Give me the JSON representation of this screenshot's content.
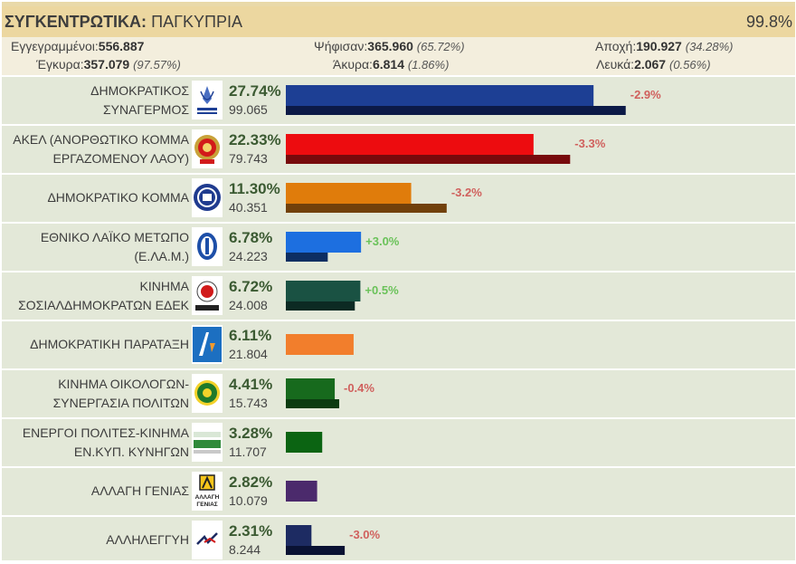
{
  "header": {
    "title_bold": "ΣΥΓΚΕΝΤΡΩΤΙΚΑ:",
    "title_rest": "ΠΑΓΚΥΠΡΙΑ",
    "counted": "99.8%"
  },
  "stats": {
    "registered_label": "Εγγεγραμμένοι:",
    "registered_value": "556.887",
    "voted_label": "Ψήφισαν:",
    "voted_value": "365.960",
    "voted_pct": "(65.72%)",
    "abstention_label": "Αποχή:",
    "abstention_value": "190.927",
    "abstention_pct": "(34.28%)",
    "valid_label": "Έγκυρα:",
    "valid_value": "357.079",
    "valid_pct": "(97.57%)",
    "invalid_label": "Άκυρα:",
    "invalid_value": "6.814",
    "invalid_pct": "(1.86%)",
    "blank_label": "Λευκά:",
    "blank_value": "2.067",
    "blank_pct": "(0.56%)"
  },
  "colors": {
    "gain": "#6ac259",
    "loss": "#d0605d"
  },
  "chart_data": {
    "type": "bar",
    "orientation": "horizontal",
    "xlim": [
      0,
      38
    ],
    "series": [
      {
        "values": [
          27.74,
          22.33,
          11.3,
          6.78,
          6.72,
          6.11,
          4.41,
          3.28,
          2.82,
          2.31
        ]
      }
    ],
    "previous_values": [
      30.64,
      25.63,
      14.5,
      3.78,
      6.22,
      null,
      4.81,
      null,
      null,
      5.31
    ],
    "parties": [
      {
        "name": "ΔΗΜΟΚΡΑΤΙΚΟΣ ΣΥΝΑΓΕΡΜΟΣ",
        "line1": "ΔΗΜΟΚΡΑΤΙΚΟΣ",
        "line2": "ΣΥΝΑΓΕΡΜΟΣ",
        "pct": "27.74%",
        "votes": "99.065",
        "value": 27.74,
        "prev": 30.64,
        "change": "-2.9%",
        "change_dir": "loss",
        "color": "#1d3f94",
        "prev_color": "#0c1a47",
        "logo": "dhsy-logo-icon"
      },
      {
        "name": "ΑΚΕΛ (ΑΝΟΡΘΩΤΙΚΟ ΚΟΜΜΑ ΕΡΓΑΖΟΜΕΝΟΥ ΛΑΟΥ)",
        "line1": "ΑΚΕΛ (ΑΝΟΡΘΩΤΙΚΟ ΚΟΜΜΑ",
        "line2": "ΕΡΓΑΖΟΜΕΝΟΥ ΛΑΟΥ)",
        "pct": "22.33%",
        "votes": "79.743",
        "value": 22.33,
        "prev": 25.63,
        "change": "-3.3%",
        "change_dir": "loss",
        "color": "#ed0c0f",
        "prev_color": "#770a0c",
        "logo": "akel-logo-icon"
      },
      {
        "name": "ΔΗΜΟΚΡΑΤΙΚΟ ΚΟΜΜΑ",
        "line1": "",
        "line2": "ΔΗΜΟΚΡΑΤΙΚΟ ΚΟΜΜΑ",
        "pct": "11.30%",
        "votes": "40.351",
        "value": 11.3,
        "prev": 14.5,
        "change": "-3.2%",
        "change_dir": "loss",
        "color": "#e07c0b",
        "prev_color": "#71400b",
        "logo": "diko-logo-icon"
      },
      {
        "name": "ΕΘΝΙΚΟ ΛΑΪΚΟ ΜΕΤΩΠΟ (Ε.ΛΑ.Μ.)",
        "line1": "ΕΘΝΙΚΟ ΛΑΪΚΟ ΜΕΤΩΠΟ",
        "line2": "(Ε.ΛΑ.Μ.)",
        "pct": "6.78%",
        "votes": "24.223",
        "value": 6.78,
        "prev": 3.78,
        "change": "+3.0%",
        "change_dir": "gain",
        "color": "#1d6fe0",
        "prev_color": "#0d2e62",
        "logo": "elam-logo-icon"
      },
      {
        "name": "ΚΙΝΗΜΑ ΣΟΣΙΑΛΔΗΜΟΚΡΑΤΩΝ ΕΔΕΚ",
        "line1": "ΚΙΝΗΜΑ",
        "line2": "ΣΟΣΙΑΛΔΗΜΟΚΡΑΤΩΝ ΕΔΕΚ",
        "pct": "6.72%",
        "votes": "24.008",
        "value": 6.72,
        "prev": 6.22,
        "change": "+0.5%",
        "change_dir": "gain",
        "color": "#1a5243",
        "prev_color": "#0c2a23",
        "logo": "edek-logo-icon"
      },
      {
        "name": "ΔΗΜΟΚΡΑΤΙΚΗ ΠΑΡΑΤΑΞΗ",
        "line1": "",
        "line2": "ΔΗΜΟΚΡΑΤΙΚΗ ΠΑΡΑΤΑΞΗ",
        "pct": "6.11%",
        "votes": "21.804",
        "value": 6.11,
        "prev": null,
        "change": "",
        "change_dir": "",
        "color": "#f27e2c",
        "prev_color": "",
        "logo": "dipa-logo-icon"
      },
      {
        "name": "ΚΙΝΗΜΑ ΟΙΚΟΛΟΓΩΝ-ΣΥΝΕΡΓΑΣΙΑ ΠΟΛΙΤΩΝ",
        "line1": "ΚΙΝΗΜΑ ΟΙΚΟΛΟΓΩΝ-",
        "line2": "ΣΥΝΕΡΓΑΣΙΑ ΠΟΛΙΤΩΝ",
        "pct": "4.41%",
        "votes": "15.743",
        "value": 4.41,
        "prev": 4.81,
        "change": "-0.4%",
        "change_dir": "loss",
        "color": "#176a1d",
        "prev_color": "#0c3b10",
        "logo": "ecologists-logo-icon"
      },
      {
        "name": "ΕΝΕΡΓΟΙ ΠΟΛΙΤΕΣ-ΚΙΝΗΜΑ ΕΝ.ΚΥΠ. ΚΥΝΗΓΩΝ",
        "line1": "ΕΝΕΡΓΟΙ ΠΟΛΙΤΕΣ-ΚΙΝΗΜΑ",
        "line2": "ΕΝ.ΚΥΠ. ΚΥΝΗΓΩΝ",
        "pct": "3.28%",
        "votes": "11.707",
        "value": 3.28,
        "prev": null,
        "change": "",
        "change_dir": "",
        "color": "#0b6412",
        "prev_color": "",
        "logo": "active-citizens-logo-icon"
      },
      {
        "name": "ΑΛΛΑΓΗ ΓΕΝΙΑΣ",
        "line1": "",
        "line2": "ΑΛΛΑΓΗ ΓΕΝΙΑΣ",
        "pct": "2.82%",
        "votes": "10.079",
        "value": 2.82,
        "prev": null,
        "change": "",
        "change_dir": "",
        "color": "#4b2a6c",
        "prev_color": "",
        "logo": "allagi-genias-logo-icon",
        "logo_text": "ΑΛΛΑΓΗ ΓΕΝΙΑΣ"
      },
      {
        "name": "ΑΛΛΗΛΕΓΓΥΗ",
        "line1": "",
        "line2": "ΑΛΛΗΛΕΓΓΥΗ",
        "pct": "2.31%",
        "votes": "8.244",
        "value": 2.31,
        "prev": 5.31,
        "change": "-3.0%",
        "change_dir": "loss",
        "color": "#1d2b62",
        "prev_color": "#0a1233",
        "logo": "allileggyi-logo-icon"
      }
    ]
  }
}
